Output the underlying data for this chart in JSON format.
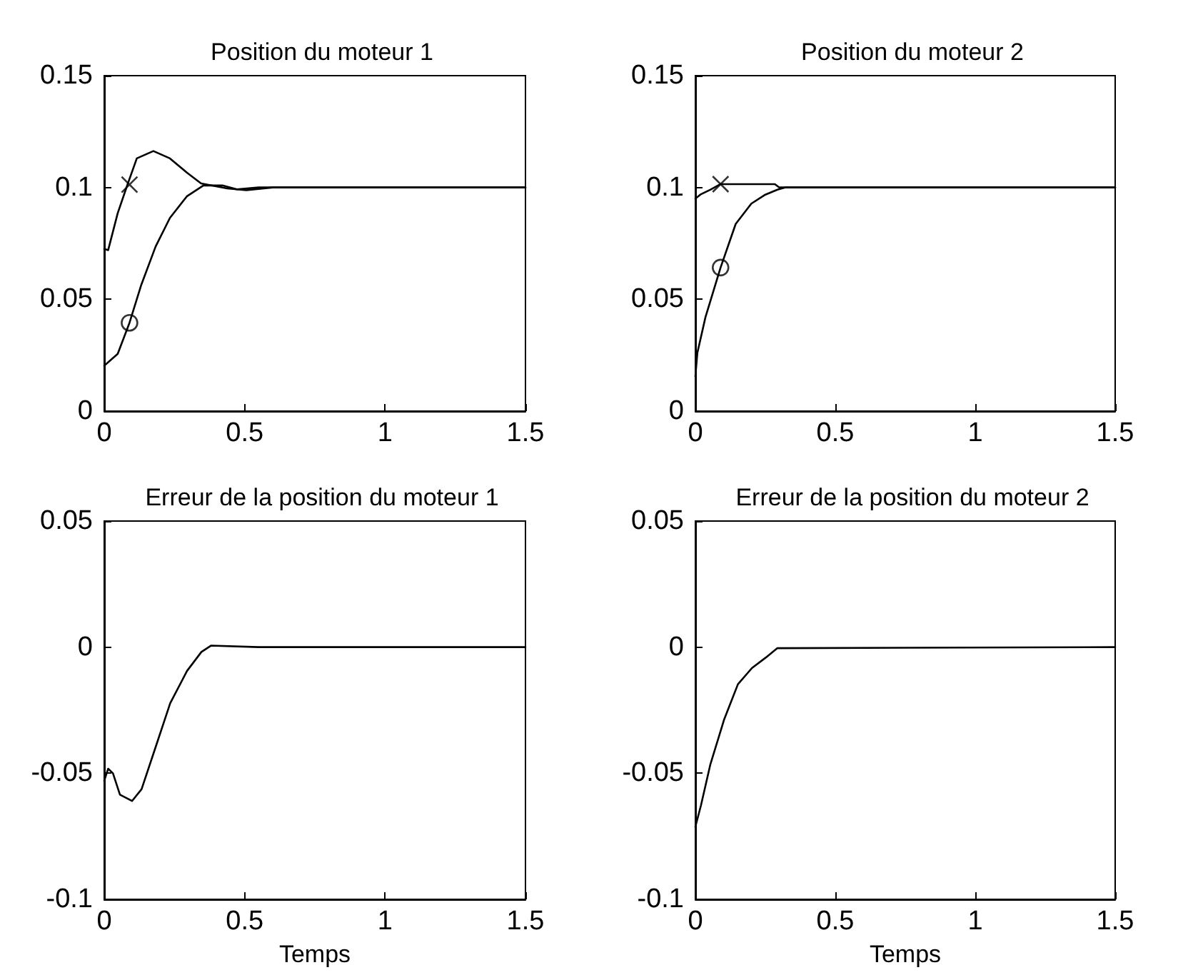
{
  "chart_data": [
    {
      "type": "line",
      "title": "Position du moteur 1",
      "xlim": [
        0,
        1.5
      ],
      "xticks": [
        0,
        0.5,
        1,
        1.5
      ],
      "ylim": [
        0,
        0.15
      ],
      "yticks": [
        0,
        0.05,
        0.1,
        0.15
      ],
      "grid": false,
      "line_style": "solid",
      "marker": "none",
      "series": [
        {
          "color": "#000000",
          "x": [
            0,
            0.014,
            0.048,
            0.082,
            0.116,
            0.175,
            0.234,
            0.294,
            0.345,
            0.438,
            0.506,
            0.6,
            1.5
          ],
          "values": [
            0.0725,
            0.072,
            0.0885,
            0.101,
            0.113,
            0.1163,
            0.113,
            0.1067,
            0.1018,
            0.0996,
            0.0988,
            0.1,
            0.1
          ]
        },
        {
          "color": "#000000",
          "x": [
            0,
            0.048,
            0.09,
            0.132,
            0.183,
            0.234,
            0.294,
            0.353,
            0.421,
            0.472,
            0.55,
            1.5
          ],
          "values": [
            0.0203,
            0.0256,
            0.0395,
            0.0565,
            0.0736,
            0.0864,
            0.096,
            0.1009,
            0.1009,
            0.0992,
            0.1,
            0.1
          ]
        },
        {
          "type": "scatter",
          "marker": "cross",
          "color": "#000000",
          "x": [
            0.09
          ],
          "values": [
            0.1013
          ]
        },
        {
          "type": "scatter",
          "marker": "circle",
          "color": "#000000",
          "x": [
            0.09
          ],
          "values": [
            0.0395
          ]
        }
      ]
    },
    {
      "type": "line",
      "title": "Position du moteur 2",
      "xlim": [
        0,
        1.5
      ],
      "xticks": [
        0,
        0.5,
        1,
        1.5
      ],
      "ylim": [
        0,
        0.15
      ],
      "yticks": [
        0,
        0.05,
        0.1,
        0.15
      ],
      "grid": false,
      "line_style": "solid",
      "marker": "none",
      "series": [
        {
          "color": "#000000",
          "x": [
            0,
            0.02,
            0.053,
            0.09,
            0.119,
            0.284,
            0.3,
            1.5
          ],
          "values": [
            0.095,
            0.097,
            0.099,
            0.1015,
            0.1015,
            0.1015,
            0.1,
            0.1
          ]
        },
        {
          "color": "#000000",
          "x": [
            0,
            0.007,
            0.036,
            0.09,
            0.144,
            0.2,
            0.25,
            0.293,
            0.32,
            1.5
          ],
          "values": [
            0.0155,
            0.026,
            0.042,
            0.0642,
            0.0837,
            0.0928,
            0.0968,
            0.099,
            0.1,
            0.1
          ]
        },
        {
          "type": "scatter",
          "marker": "cross",
          "color": "#000000",
          "x": [
            0.09
          ],
          "values": [
            0.1015
          ]
        },
        {
          "type": "scatter",
          "marker": "circle",
          "color": "#000000",
          "x": [
            0.09
          ],
          "values": [
            0.0642
          ]
        }
      ]
    },
    {
      "type": "line",
      "title": "Erreur de la position du moteur 1",
      "xlabel": "Temps",
      "xlim": [
        0,
        1.5
      ],
      "xticks": [
        0,
        0.5,
        1,
        1.5
      ],
      "ylim": [
        -0.1,
        0.05
      ],
      "yticks": [
        -0.1,
        -0.05,
        0,
        0.05
      ],
      "grid": false,
      "line_style": "solid",
      "marker": "none",
      "series": [
        {
          "color": "#000000",
          "x": [
            0,
            0.014,
            0.031,
            0.056,
            0.099,
            0.133,
            0.184,
            0.235,
            0.295,
            0.346,
            0.38,
            0.55,
            1.5
          ],
          "values": [
            -0.053,
            -0.0482,
            -0.05,
            -0.0585,
            -0.061,
            -0.0563,
            -0.0393,
            -0.0222,
            -0.0094,
            -0.0019,
            0.0006,
            0,
            0
          ]
        }
      ]
    },
    {
      "type": "line",
      "title": "Erreur de la position du moteur 2",
      "xlabel": "Temps",
      "xlim": [
        0,
        1.5
      ],
      "xticks": [
        0,
        0.5,
        1,
        1.5
      ],
      "ylim": [
        -0.1,
        0.05
      ],
      "yticks": [
        -0.1,
        -0.05,
        0,
        0.05
      ],
      "grid": false,
      "line_style": "solid",
      "marker": "none",
      "series": [
        {
          "color": "#000000",
          "x": [
            0,
            0.02,
            0.053,
            0.103,
            0.152,
            0.202,
            0.252,
            0.293,
            1.5
          ],
          "values": [
            -0.0712,
            -0.0627,
            -0.0467,
            -0.0286,
            -0.0147,
            -0.0083,
            -0.0041,
            -0.0004,
            0
          ]
        }
      ]
    }
  ]
}
